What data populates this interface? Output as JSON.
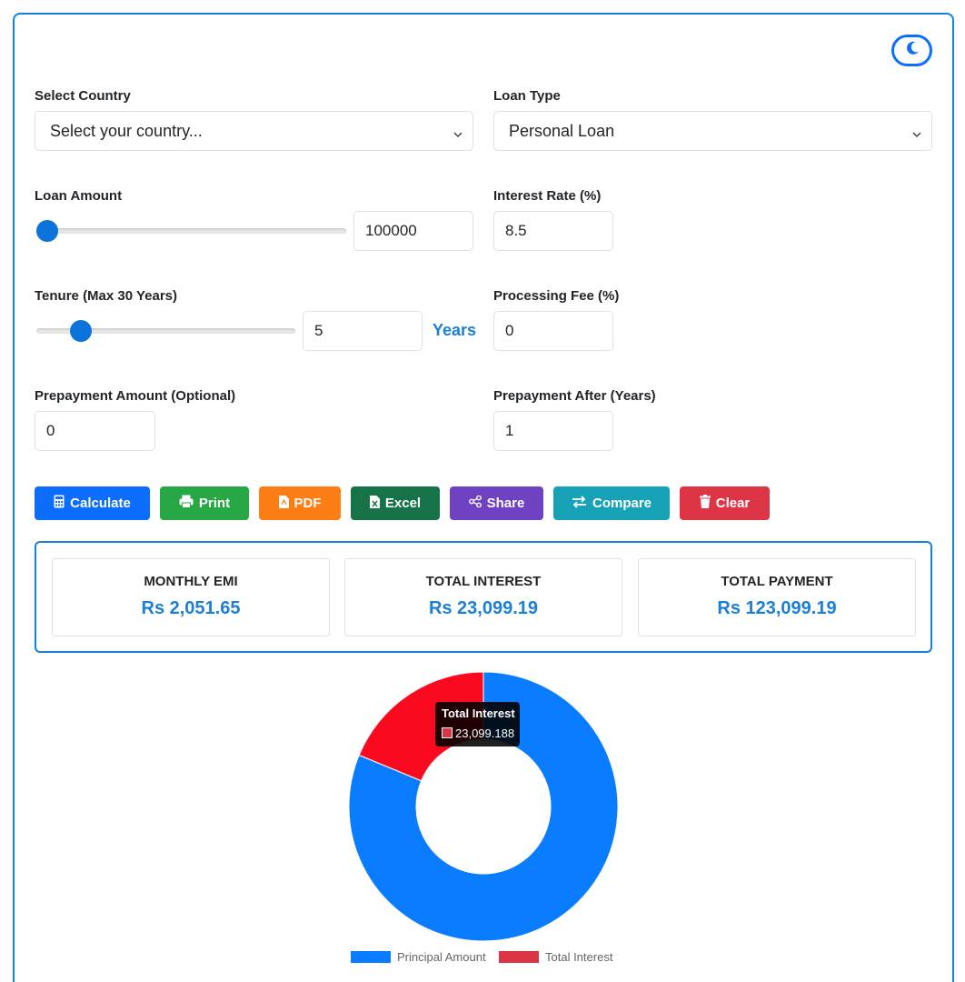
{
  "colors": {
    "accent": "#1a7fd6",
    "principal": "#0a7cff",
    "interest_slice": "#fa0a1e",
    "interest_legend": "#dc3545"
  },
  "header": {
    "theme_toggle_icon": "moon-icon"
  },
  "form": {
    "country": {
      "label": "Select Country",
      "value": "Select your country..."
    },
    "loan_type": {
      "label": "Loan Type",
      "value": "Personal Loan"
    },
    "loan_amount": {
      "label": "Loan Amount",
      "value": "100000"
    },
    "interest_rate": {
      "label": "Interest Rate (%)",
      "value": "8.5"
    },
    "tenure": {
      "label": "Tenure (Max 30 Years)",
      "value": "5",
      "unit": "Years",
      "fraction": 0.14
    },
    "processing_fee": {
      "label": "Processing Fee (%)",
      "value": "0"
    },
    "prepayment_amount": {
      "label": "Prepayment Amount (Optional)",
      "value": "0"
    },
    "prepayment_after": {
      "label": "Prepayment After (Years)",
      "value": "1"
    },
    "loan_amount_fraction": 0.0
  },
  "actions": {
    "calculate": "Calculate",
    "print": "Print",
    "pdf": "PDF",
    "excel": "Excel",
    "share": "Share",
    "compare": "Compare",
    "clear": "Clear"
  },
  "results": {
    "monthly_emi": {
      "title": "MONTHLY EMI",
      "value": "Rs 2,051.65"
    },
    "total_interest": {
      "title": "TOTAL INTEREST",
      "value": "Rs 23,099.19"
    },
    "total_payment": {
      "title": "TOTAL PAYMENT",
      "value": "Rs 123,099.19"
    }
  },
  "chart_data": {
    "type": "pie",
    "variant": "doughnut",
    "labels": [
      "Principal Amount",
      "Total Interest"
    ],
    "values": [
      100000,
      23099.188
    ],
    "colors": [
      "#0a7cff",
      "#fa0a1e"
    ],
    "legend_colors": [
      "#0a7cff",
      "#dc3545"
    ],
    "legend": "bottom",
    "tooltip": {
      "title": "Total Interest",
      "value": "23,099.188"
    }
  }
}
